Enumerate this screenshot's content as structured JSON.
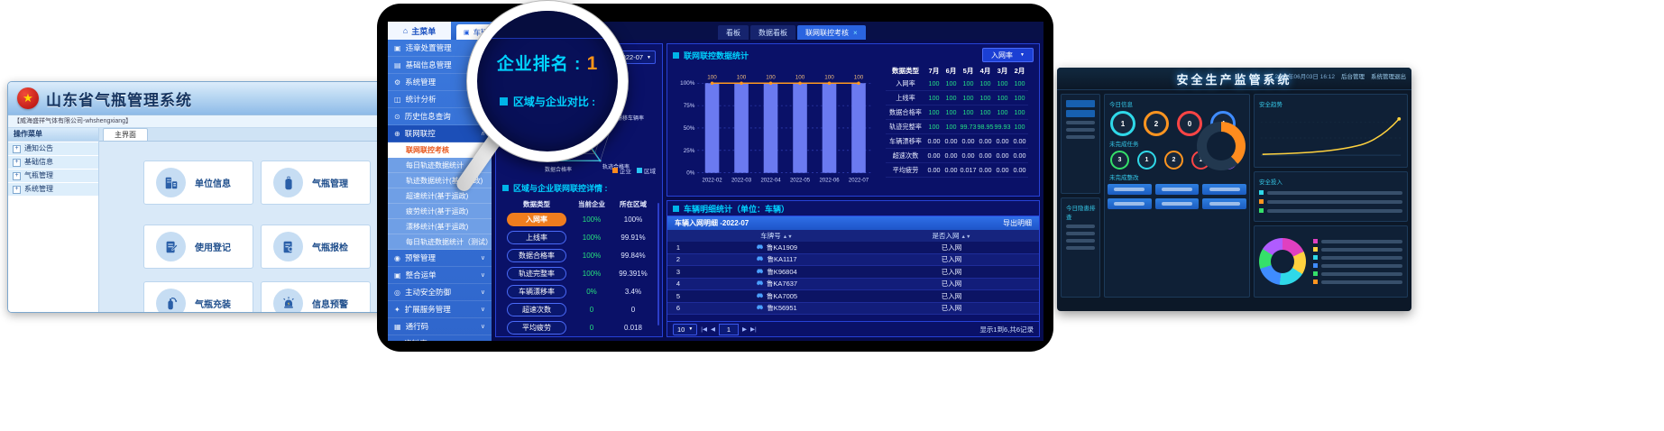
{
  "colors": {
    "accent_cyan": "#00d2ff",
    "accent_orange": "#ff8a1e",
    "value_green": "#25e085",
    "bar_blue": "#6b7af0",
    "sidebar_blue": "#3b78dc",
    "select_blue": "#1b3fd4",
    "enterprise_series": "#ff8a1e",
    "region_series": "#27c5f5"
  },
  "gas_system": {
    "title": "山东省气瓶管理系统",
    "company": "【威海盛祥气体有限公司-whshengxiang】",
    "menu_header": "操作菜单",
    "menu_items": [
      "通知公告",
      "基础信息",
      "气瓶管理",
      "系统管理"
    ],
    "tab": "主界面",
    "cards": [
      {
        "label": "单位信息",
        "icon": "buildings-icon"
      },
      {
        "label": "气瓶管理",
        "icon": "gas-cylinder-icon"
      },
      {
        "label": "使用登记",
        "icon": "register-icon"
      },
      {
        "label": "气瓶报检",
        "icon": "inspection-icon"
      },
      {
        "label": "气瓶充装",
        "icon": "filling-icon"
      },
      {
        "label": "信息预警",
        "icon": "alert-icon"
      }
    ]
  },
  "vehicle_system": {
    "home_label": "主菜单",
    "list_tab": "车辆列表",
    "collapse_glyph": "«",
    "top_tabs": [
      {
        "label": "看板",
        "active": false
      },
      {
        "label": "数据看板",
        "active": false
      },
      {
        "label": "联网联控考核",
        "active": true,
        "close_glyph": "×"
      }
    ],
    "menu_top": [
      {
        "label": "违章处置管理",
        "icon": "violation-icon",
        "glyph": "▣"
      },
      {
        "label": "基础信息管理",
        "icon": "base-info-icon",
        "glyph": "▤"
      },
      {
        "label": "系统管理",
        "icon": "system-icon",
        "glyph": "⚙"
      },
      {
        "label": "统计分析",
        "icon": "stats-icon",
        "glyph": "◫"
      },
      {
        "label": "历史信息查询",
        "icon": "history-icon",
        "glyph": "⊙"
      }
    ],
    "menu_expanded": {
      "label": "联网联控",
      "icon": "network-icon",
      "glyph": "⊕"
    },
    "submenu": [
      {
        "label": "联网联控考核",
        "active": true
      },
      {
        "label": "每日轨迹数据统计",
        "active": false
      },
      {
        "label": "轨迹数据统计(基于运政)",
        "active": false
      },
      {
        "label": "超速统计(基于运政)",
        "active": false
      },
      {
        "label": "疲劳统计(基于运政)",
        "active": false
      },
      {
        "label": "漂移统计(基于运政)",
        "active": false
      },
      {
        "label": "每日轨迹数据统计（测试）",
        "active": false
      }
    ],
    "menu_bottom": [
      {
        "label": "预警管理",
        "icon": "warning-icon",
        "glyph": "◉"
      },
      {
        "label": "整合运单",
        "icon": "waybill-icon",
        "glyph": "▣"
      },
      {
        "label": "主动安全防御",
        "icon": "defense-icon",
        "glyph": "◎"
      },
      {
        "label": "扩展服务管理",
        "icon": "service-icon",
        "glyph": "✦"
      },
      {
        "label": "通行码",
        "icon": "pass-code-icon",
        "glyph": "▦"
      },
      {
        "label": "资料库",
        "icon": "library-icon",
        "glyph": "◈"
      }
    ],
    "rank": {
      "label": "企业排名 :",
      "value": "1"
    },
    "date_label": "查询日期",
    "date_value": "2022-07",
    "compare_title": "区域与企业对比 :",
    "radar": {
      "axes": [
        "入网率",
        "漂移车辆率",
        "轨迹合格率",
        "数据合格率",
        "上线率"
      ],
      "series": [
        {
          "name": "企业",
          "color": "#ff8a1e",
          "values": [
            100,
            0,
            100,
            100,
            100
          ]
        },
        {
          "name": "区域",
          "color": "#27c5f5",
          "values": [
            100,
            3.4,
            99.39,
            99.84,
            99.91
          ]
        }
      ]
    },
    "detail_title": "区域与企业联网联控详情 :",
    "detail_table": {
      "headers": [
        "数据类型",
        "当前企业",
        "所在区域"
      ],
      "rows": [
        {
          "type": "入网率",
          "company": "100%",
          "region": "100%",
          "selected": true
        },
        {
          "type": "上线率",
          "company": "100%",
          "region": "99.91%",
          "selected": false
        },
        {
          "type": "数据合格率",
          "company": "100%",
          "region": "99.84%",
          "selected": false
        },
        {
          "type": "轨迹完整率",
          "company": "100%",
          "region": "99.391%",
          "selected": false
        },
        {
          "type": "车辆漂移率",
          "company": "0%",
          "region": "3.4%",
          "selected": false
        },
        {
          "type": "超速次数",
          "company": "0",
          "region": "0",
          "selected": false
        },
        {
          "type": "平均疲劳",
          "company": "0",
          "region": "0.018",
          "selected": false
        }
      ]
    },
    "stats_title": "联网联控数据统计",
    "metric_select": "入网率",
    "chart_data": {
      "type": "bar",
      "categories": [
        "2022-02",
        "2022-03",
        "2022-04",
        "2022-05",
        "2022-06",
        "2022-07"
      ],
      "values": [
        100,
        100,
        100,
        100,
        100,
        100
      ],
      "bar_labels": [
        "100",
        "100",
        "100",
        "100",
        "100",
        "100"
      ],
      "line_series": {
        "name": "入网率",
        "values": [
          100,
          100,
          100,
          100,
          100,
          100
        ],
        "color": "#ff9820"
      },
      "ylabel_ticks": [
        "100%",
        "75%",
        "50%",
        "25%",
        "0%"
      ],
      "ylim": [
        0,
        100
      ],
      "grid": true
    },
    "month_table": {
      "headers": [
        "数据类型",
        "7月",
        "6月",
        "5月",
        "4月",
        "3月",
        "2月"
      ],
      "rows": [
        {
          "label": "入网率",
          "values": [
            "100",
            "100",
            "100",
            "100",
            "100",
            "100"
          ],
          "tone": "green"
        },
        {
          "label": "上线率",
          "values": [
            "100",
            "100",
            "100",
            "100",
            "100",
            "100"
          ],
          "tone": "green"
        },
        {
          "label": "数据合格率",
          "values": [
            "100",
            "100",
            "100",
            "100",
            "100",
            "100"
          ],
          "tone": "green"
        },
        {
          "label": "轨迹完整率",
          "values": [
            "100",
            "100",
            "99.73",
            "98.95",
            "99.93",
            "100"
          ],
          "tone": "green"
        },
        {
          "label": "车辆漂移率",
          "values": [
            "0.00",
            "0.00",
            "0.00",
            "0.00",
            "0.00",
            "0.00"
          ],
          "tone": "white"
        },
        {
          "label": "超速次数",
          "values": [
            "0.00",
            "0.00",
            "0.00",
            "0.00",
            "0.00",
            "0.00"
          ],
          "tone": "white"
        },
        {
          "label": "平均疲劳",
          "values": [
            "0.00",
            "0.00",
            "0.017",
            "0.00",
            "0.00",
            "0.00"
          ],
          "tone": "white"
        }
      ]
    },
    "vehicle_panel": {
      "title": "车辆明细统计（单位：车辆）",
      "tab": "车辆入网明细 -2022-07",
      "export_label": "导出明细",
      "columns": [
        "车牌号",
        "是否入网"
      ],
      "rows": [
        {
          "no": "1",
          "plate": "鲁KA1909",
          "status": "已入网"
        },
        {
          "no": "2",
          "plate": "鲁KA1117",
          "status": "已入网"
        },
        {
          "no": "3",
          "plate": "鲁K96804",
          "status": "已入网"
        },
        {
          "no": "4",
          "plate": "鲁KA7637",
          "status": "已入网"
        },
        {
          "no": "5",
          "plate": "鲁KA7005",
          "status": "已入网"
        },
        {
          "no": "6",
          "plate": "鲁K56951",
          "status": "已入网"
        }
      ],
      "page_size": "10",
      "page": "1",
      "summary": "显示1到6,共6记录"
    }
  },
  "magnifier": {
    "line1_label": "企业排名 :",
    "line1_value": "1",
    "line2": "区域与企业对比 :"
  },
  "safety_system": {
    "title": "安全生产监管系统",
    "datetime": "2022年06月03日 16:12",
    "admin_label": "后台管理",
    "logout_label": "系统管理退出",
    "sections": {
      "today": "今日信息",
      "unfinished": "未完成任务",
      "rectify": "未完成整改",
      "trend": "安全趋势",
      "invest": "安全投入",
      "hazard": "今日隐患排查"
    },
    "today_rings": [
      {
        "value": "1",
        "color": "#2fd8e8"
      },
      {
        "value": "2",
        "color": "#ff9520"
      },
      {
        "value": "0",
        "color": "#ff4545"
      },
      {
        "value": "4",
        "color": "#3f8cff"
      }
    ],
    "task_rings": [
      {
        "value": "3",
        "color": "#35e06a"
      },
      {
        "value": "1",
        "color": "#2fd8e8"
      },
      {
        "value": "2",
        "color": "#ff9520"
      },
      {
        "value": "1",
        "color": "#ff4545"
      },
      {
        "value": "1",
        "color": "#b05cff"
      }
    ],
    "legend_colors": [
      "#e040c0",
      "#ffd23f",
      "#2fd8e8",
      "#3f8cff",
      "#35e06a",
      "#ff9520"
    ]
  }
}
